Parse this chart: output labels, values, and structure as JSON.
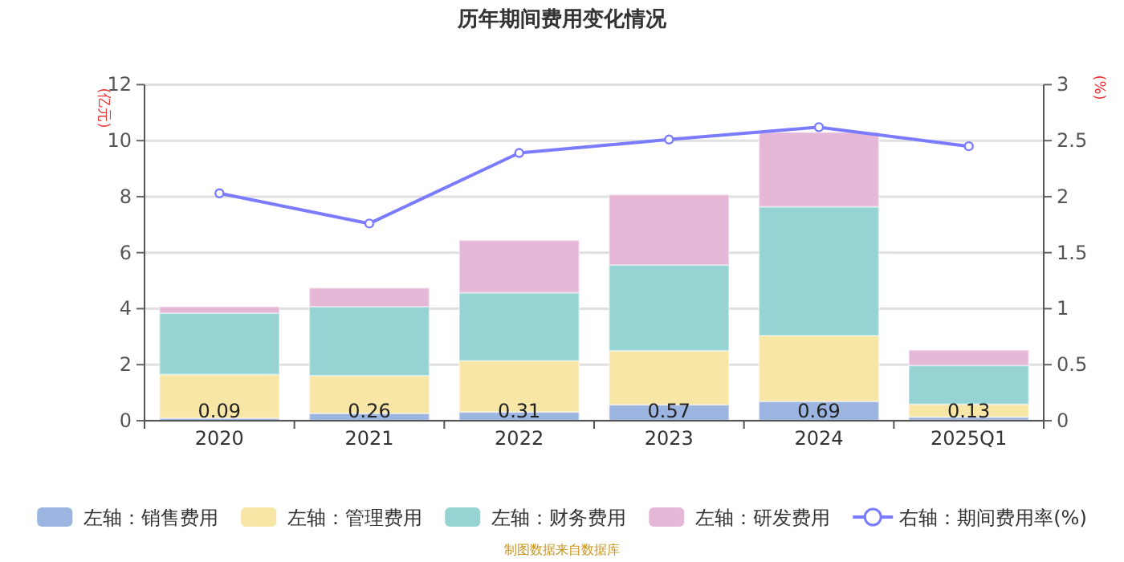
{
  "chart_data": {
    "type": "bar",
    "title": "历年期间费用变化情况",
    "ylabel": "(亿元)",
    "y2label": "(%)",
    "categories": [
      "2020",
      "2021",
      "2022",
      "2023",
      "2024",
      "2025Q1"
    ],
    "stacked": true,
    "series": [
      {
        "name": "左轴：销售费用",
        "color": "#9bb5e0",
        "values": [
          0.09,
          0.26,
          0.31,
          0.57,
          0.69,
          0.13
        ],
        "value_labels": [
          "0.09",
          "0.26",
          "0.31",
          "0.57",
          "0.69",
          "0.13"
        ]
      },
      {
        "name": "左轴：管理费用",
        "color": "#f8e6a6",
        "values": [
          1.56,
          1.35,
          1.83,
          1.93,
          2.35,
          0.46
        ]
      },
      {
        "name": "左轴：财务费用",
        "color": "#96d4d4",
        "values": [
          2.19,
          2.46,
          2.43,
          3.06,
          4.6,
          1.38
        ]
      },
      {
        "name": "左轴：研发费用",
        "color": "#e6b8d8",
        "values": [
          0.23,
          0.67,
          1.87,
          2.51,
          2.66,
          0.55
        ]
      },
      {
        "name": "右轴：期间费用率(%)",
        "type": "line",
        "axis": "y2",
        "color": "#7b7bff",
        "values": [
          2.03,
          1.76,
          2.39,
          2.51,
          2.62,
          2.45
        ]
      }
    ],
    "ylim": [
      0,
      12
    ],
    "yticks": [
      0,
      2,
      4,
      6,
      8,
      10,
      12
    ],
    "y2lim": [
      0,
      3
    ],
    "y2ticks": [
      0,
      0.5,
      1,
      1.5,
      2,
      2.5,
      3
    ],
    "grid": "y",
    "legend": "bottom",
    "marker": "circle",
    "line_style": "solid",
    "annotations": [
      "制图数据来自数据库"
    ]
  }
}
